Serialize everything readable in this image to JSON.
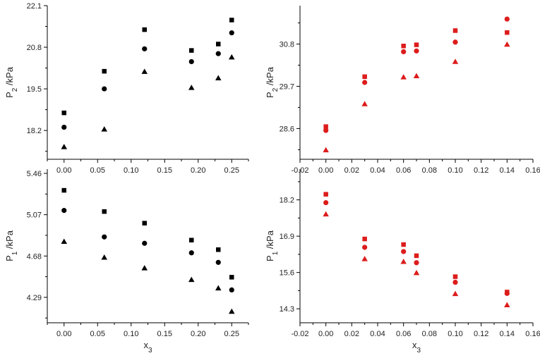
{
  "chart_data": [
    {
      "type": "scatter",
      "panel": "top-left",
      "xlabel": "",
      "ylabel": {
        "main": "P",
        "sub": "2",
        "unit": " /kPa"
      },
      "xlim": [
        -0.025,
        0.275
      ],
      "ylim": [
        17.3,
        22.1
      ],
      "xticks": [
        0.0,
        0.05,
        0.1,
        0.15,
        0.2,
        0.25
      ],
      "xtick_labels": [
        "0.00",
        "0.05",
        "0.10",
        "0.15",
        "0.20",
        "0.25"
      ],
      "yticks": [
        18.2,
        19.5,
        20.8,
        22.1
      ],
      "ytick_labels": [
        "18.2",
        "19.5",
        "20.8",
        "22.1"
      ],
      "color": "#000000",
      "series": [
        {
          "marker": "square",
          "x": [
            0.0,
            0.06,
            0.12,
            0.19,
            0.23,
            0.25
          ],
          "y": [
            18.75,
            20.05,
            21.35,
            20.7,
            20.9,
            21.65
          ]
        },
        {
          "marker": "circle",
          "x": [
            0.0,
            0.06,
            0.12,
            0.19,
            0.23,
            0.25
          ],
          "y": [
            18.3,
            19.5,
            20.75,
            20.35,
            20.6,
            21.25
          ]
        },
        {
          "marker": "triangle",
          "x": [
            0.0,
            0.06,
            0.12,
            0.19,
            0.23,
            0.25
          ],
          "y": [
            17.7,
            18.25,
            20.05,
            19.55,
            19.85,
            20.5
          ]
        }
      ]
    },
    {
      "type": "scatter",
      "panel": "top-right",
      "xlabel": "",
      "ylabel": {
        "main": "P",
        "sub": "2",
        "unit": " /kPa"
      },
      "xlim": [
        -0.02,
        0.16
      ],
      "ylim": [
        27.8,
        31.8
      ],
      "xticks": [
        -0.02,
        0.0,
        0.02,
        0.04,
        0.06,
        0.08,
        0.1,
        0.12,
        0.14,
        0.16
      ],
      "xtick_labels": [
        "-0.02",
        "0.00",
        "0.02",
        "0.04",
        "0.06",
        "0.08",
        "0.10",
        "0.12",
        "0.14",
        "0.16"
      ],
      "yticks": [
        28.6,
        29.7,
        30.8
      ],
      "ytick_labels": [
        "28.6",
        "29.7",
        "30.8"
      ],
      "color": "#dd1c1c",
      "series": [
        {
          "marker": "square",
          "x": [
            0.0,
            0.03,
            0.06,
            0.07,
            0.1,
            0.14
          ],
          "y": [
            28.65,
            29.95,
            30.75,
            30.78,
            31.15,
            31.1
          ]
        },
        {
          "marker": "circle",
          "x": [
            0.0,
            0.03,
            0.06,
            0.07,
            0.1,
            0.14
          ],
          "y": [
            28.55,
            29.8,
            30.6,
            30.62,
            30.85,
            31.45
          ]
        },
        {
          "marker": "triangle",
          "x": [
            0.0,
            0.03,
            0.06,
            0.07,
            0.1,
            0.14
          ],
          "y": [
            28.05,
            29.25,
            29.95,
            29.98,
            30.35,
            30.8
          ]
        }
      ]
    },
    {
      "type": "scatter",
      "panel": "bottom-left",
      "xlabel": {
        "main": "x",
        "sub": "3"
      },
      "ylabel": {
        "main": "P",
        "sub": "1",
        "unit": " /kPa"
      },
      "xlim": [
        -0.025,
        0.275
      ],
      "ylim": [
        4.05,
        5.5
      ],
      "xticks": [
        0.0,
        0.05,
        0.1,
        0.15,
        0.2,
        0.25
      ],
      "xtick_labels": [
        "0.00",
        "0.05",
        "0.10",
        "0.15",
        "0.20",
        "0.25"
      ],
      "yticks": [
        4.29,
        4.68,
        5.07,
        5.46
      ],
      "ytick_labels": [
        "4.29",
        "4.68",
        "5.07",
        "5.46"
      ],
      "color": "#000000",
      "series": [
        {
          "marker": "square",
          "x": [
            0.0,
            0.06,
            0.12,
            0.19,
            0.23,
            0.25
          ],
          "y": [
            5.3,
            5.1,
            4.99,
            4.83,
            4.74,
            4.48
          ]
        },
        {
          "marker": "circle",
          "x": [
            0.0,
            0.06,
            0.12,
            0.19,
            0.23,
            0.25
          ],
          "y": [
            5.11,
            4.86,
            4.8,
            4.71,
            4.62,
            4.36
          ]
        },
        {
          "marker": "triangle",
          "x": [
            0.0,
            0.06,
            0.12,
            0.19,
            0.23,
            0.25
          ],
          "y": [
            4.82,
            4.67,
            4.57,
            4.46,
            4.38,
            4.16
          ]
        }
      ]
    },
    {
      "type": "scatter",
      "panel": "bottom-right",
      "xlabel": {
        "main": "x",
        "sub": "3"
      },
      "ylabel": {
        "main": "P",
        "sub": "1",
        "unit": " /kPa"
      },
      "xlim": [
        -0.02,
        0.16
      ],
      "ylim": [
        13.8,
        19.3
      ],
      "xticks": [
        -0.02,
        0.0,
        0.02,
        0.04,
        0.06,
        0.08,
        0.1,
        0.12,
        0.14,
        0.16
      ],
      "xtick_labels": [
        "-0.02",
        "0.00",
        "0.02",
        "0.04",
        "0.06",
        "0.08",
        "0.10",
        "0.12",
        "0.14",
        "0.16"
      ],
      "yticks": [
        14.3,
        15.6,
        16.9,
        18.2
      ],
      "ytick_labels": [
        "14.3",
        "15.6",
        "16.9",
        "18.2"
      ],
      "color": "#dd1c1c",
      "series": [
        {
          "marker": "square",
          "x": [
            0.0,
            0.03,
            0.06,
            0.07,
            0.1,
            0.14
          ],
          "y": [
            18.4,
            16.8,
            16.6,
            16.2,
            15.45,
            14.9
          ]
        },
        {
          "marker": "circle",
          "x": [
            0.0,
            0.03,
            0.06,
            0.07,
            0.1,
            0.14
          ],
          "y": [
            18.1,
            16.5,
            16.35,
            15.95,
            15.25,
            14.85
          ]
        },
        {
          "marker": "triangle",
          "x": [
            0.0,
            0.03,
            0.06,
            0.07,
            0.1,
            0.14
          ],
          "y": [
            17.7,
            16.1,
            16.0,
            15.6,
            14.85,
            14.45
          ]
        }
      ]
    }
  ]
}
